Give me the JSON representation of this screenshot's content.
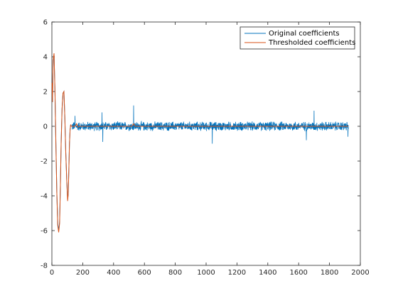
{
  "chart_data": {
    "type": "line",
    "title": "",
    "xlabel": "",
    "ylabel": "",
    "xlim": [
      0,
      2000
    ],
    "ylim": [
      -8,
      6
    ],
    "xticks": [
      0,
      200,
      400,
      600,
      800,
      1000,
      1200,
      1400,
      1600,
      1800,
      2000
    ],
    "yticks": [
      -8,
      -6,
      -4,
      -2,
      0,
      2,
      4,
      6
    ],
    "grid": false,
    "legend_position": "top-right",
    "series": [
      {
        "name": "Original coefficients",
        "color": "#0072BD",
        "segments": [
          {
            "x": [
              1,
              4,
              8,
              14,
              20,
              26,
              32,
              38,
              44,
              50,
              55,
              60,
              66,
              72,
              78,
              84,
              90,
              96,
              102,
              106,
              110,
              114,
              118,
              122,
              126,
              130
            ],
            "y": [
              2.5,
              1.4,
              3.8,
              4.1,
              2.0,
              -1.0,
              -3.8,
              -5.6,
              -6.0,
              -5.5,
              -3.5,
              -1.0,
              1.0,
              1.9,
              2.0,
              0.5,
              -1.5,
              -3.0,
              -4.2,
              -3.9,
              -2.5,
              -1.0,
              -0.2,
              0.1,
              0.0,
              0.0
            ]
          }
        ],
        "noise": {
          "x_range": [
            130,
            1922
          ],
          "amplitude": 0.3,
          "peaks": [
            [
              150,
              0.6
            ],
            [
              325,
              0.8
            ],
            [
              330,
              -0.9
            ],
            [
              530,
              1.2
            ],
            [
              1040,
              -1.0
            ],
            [
              1650,
              -0.8
            ],
            [
              1700,
              0.9
            ],
            [
              1920,
              -0.6
            ]
          ]
        }
      },
      {
        "name": "Thresholded coefficients",
        "color": "#D95319",
        "segments": [
          {
            "x": [
              1,
              4,
              8,
              14,
              20,
              26,
              32,
              38,
              44,
              50,
              55,
              60,
              66,
              72,
              78,
              84,
              90,
              96,
              102,
              106,
              110,
              114,
              118,
              122,
              126,
              130
            ],
            "y": [
              2.5,
              1.4,
              3.8,
              4.2,
              2.0,
              -1.0,
              -3.8,
              -5.7,
              -6.1,
              -5.6,
              -3.5,
              -1.0,
              1.0,
              1.9,
              2.0,
              0.5,
              -1.5,
              -3.0,
              -4.3,
              -3.9,
              -2.5,
              -1.0,
              -0.2,
              0.1,
              0.0,
              0.0
            ]
          },
          {
            "x": [
              130,
              150,
              160,
              170,
              180,
              520,
              530,
              540,
              1922
            ],
            "y": [
              0,
              0,
              0.15,
              -0.05,
              0,
              0,
              0.15,
              0,
              0
            ]
          }
        ]
      }
    ]
  }
}
